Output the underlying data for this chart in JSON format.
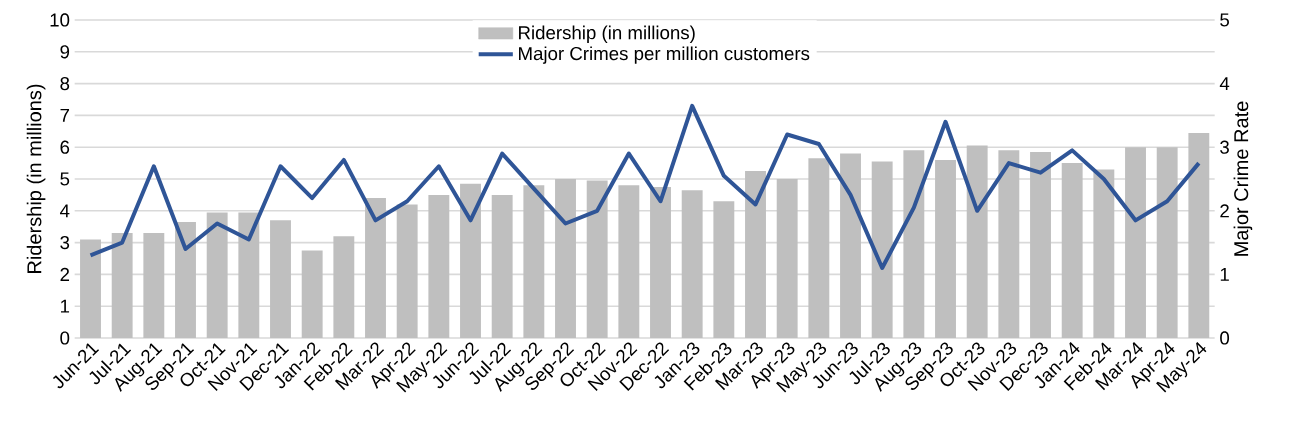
{
  "chart_data": {
    "type": "bar",
    "categories": [
      "Jun-21",
      "Jul-21",
      "Aug-21",
      "Sep-21",
      "Oct-21",
      "Nov-21",
      "Dec-21",
      "Jan-22",
      "Feb-22",
      "Mar-22",
      "Apr-22",
      "May-22",
      "Jun-22",
      "Jul-22",
      "Aug-22",
      "Sep-22",
      "Oct-22",
      "Nov-22",
      "Dec-22",
      "Jan-23",
      "Feb-23",
      "Mar-23",
      "Apr-23",
      "May-23",
      "Jun-23",
      "Jul-23",
      "Aug-23",
      "Sep-23",
      "Oct-23",
      "Nov-23",
      "Dec-23",
      "Jan-24",
      "Feb-24",
      "Mar-24",
      "Apr-24",
      "May-24"
    ],
    "series": [
      {
        "name": "Ridership (in millions)",
        "color": "#bfbfbf",
        "values": [
          3.1,
          3.3,
          3.3,
          3.65,
          3.95,
          3.95,
          3.7,
          2.75,
          3.2,
          4.4,
          4.2,
          4.5,
          4.85,
          4.5,
          4.8,
          5.0,
          4.95,
          4.8,
          4.75,
          4.65,
          4.3,
          5.25,
          5.0,
          5.65,
          5.8,
          5.55,
          5.9,
          5.6,
          6.05,
          5.9,
          5.85,
          5.5,
          5.3,
          6.0,
          6.0,
          6.45
        ]
      },
      {
        "name": "Major Crimes per million customers",
        "type": "line",
        "axis": "y2",
        "color": "#2f5597",
        "values": [
          1.3,
          1.5,
          2.7,
          1.4,
          1.8,
          1.55,
          2.7,
          2.2,
          2.8,
          1.85,
          2.15,
          2.7,
          1.85,
          2.9,
          2.35,
          1.8,
          2.0,
          2.9,
          2.15,
          3.65,
          2.55,
          2.1,
          3.2,
          3.05,
          2.25,
          1.1,
          2.05,
          3.4,
          2.0,
          2.75,
          2.6,
          2.95,
          2.5,
          1.85,
          2.15,
          2.75
        ]
      }
    ],
    "ylabel": "Ridership (in millions)",
    "y2label": "Major Crime Rate",
    "ylim": [
      0,
      10
    ],
    "yticks": [
      0,
      1,
      2,
      3,
      4,
      5,
      6,
      7,
      8,
      9,
      10
    ],
    "y2lim": [
      0,
      5
    ],
    "y2ticks": [
      0,
      1,
      2,
      3,
      4,
      5
    ],
    "grid": "y",
    "legend": "top",
    "marker": "none",
    "line_style": "solid"
  }
}
